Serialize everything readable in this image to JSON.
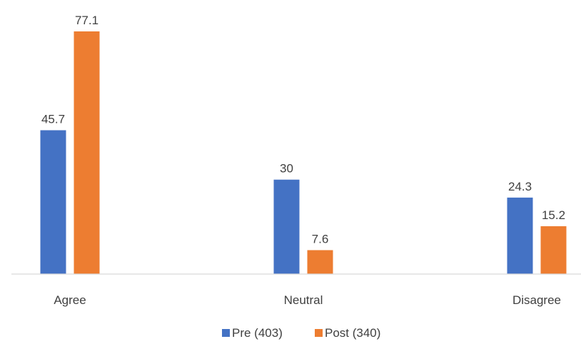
{
  "chart_data": {
    "type": "bar",
    "categories": [
      "Agree",
      "Neutral",
      "Disagree"
    ],
    "series": [
      {
        "name": "Pre (403)",
        "values": [
          45.7,
          30,
          24.3
        ],
        "color": "#4472c4"
      },
      {
        "name": "Post (340)",
        "values": [
          77.1,
          7.6,
          15.2
        ],
        "color": "#ed7d31"
      }
    ],
    "data_labels": true,
    "legend_position": "bottom",
    "grid": false,
    "ylim": [
      0,
      77.1
    ]
  }
}
